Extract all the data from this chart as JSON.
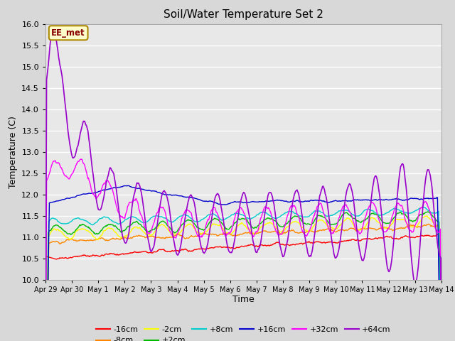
{
  "title": "Soil/Water Temperature Set 2",
  "xlabel": "Time",
  "ylabel": "Temperature (C)",
  "ylim": [
    10.0,
    16.0
  ],
  "yticks": [
    10.0,
    10.5,
    11.0,
    11.5,
    12.0,
    12.5,
    13.0,
    13.5,
    14.0,
    14.5,
    15.0,
    15.5,
    16.0
  ],
  "background_color": "#d8d8d8",
  "plot_bg_color": "#e8e8e8",
  "series_colors": {
    "-16cm": "#ff0000",
    "-8cm": "#ff8800",
    "-2cm": "#ffff00",
    "+2cm": "#00bb00",
    "+8cm": "#00cccc",
    "+16cm": "#0000cc",
    "+32cm": "#ff00ff",
    "+64cm": "#9900cc"
  },
  "xtick_labels": [
    "Apr 29",
    "Apr 30",
    "May 1",
    "May 2",
    "May 3",
    "May 4",
    "May 5",
    "May 6",
    "May 7",
    "May 8",
    "May 9",
    "May 10",
    "May 11",
    "May 12",
    "May 13",
    "May 14"
  ],
  "n_days": 15,
  "pts_per_day": 48,
  "annotation_text": "EE_met",
  "annotation_color": "#880000",
  "annotation_bg": "#ffffcc",
  "annotation_border": "#aa8800"
}
